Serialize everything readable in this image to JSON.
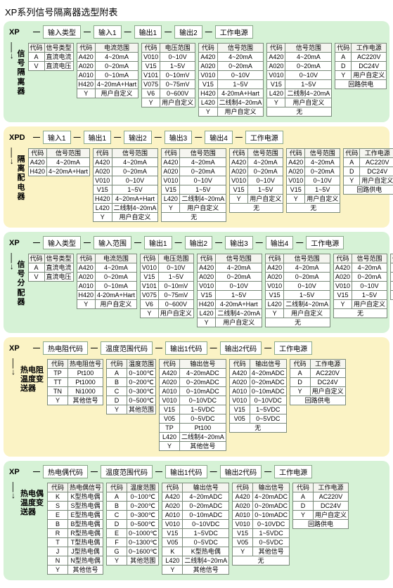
{
  "title": "XP系列信号隔离器选型附表",
  "colors": {
    "green": "#d6f2d6",
    "yellow": "#fbf3c5",
    "border": "#7a8a7a",
    "hbox_border": "#8aa88a"
  },
  "sections": [
    {
      "bg": "green",
      "prefix": "XP",
      "side": "信号隔离器",
      "headers": [
        "输入类型",
        "输入1",
        "输出1",
        "输出2",
        "工作电源"
      ],
      "tables": [
        {
          "th": [
            "代码",
            "信号类型"
          ],
          "rows": [
            [
              "A",
              "直流电流"
            ],
            [
              "V",
              "直流电压"
            ]
          ]
        },
        {
          "th": [
            "代码",
            "电流范围"
          ],
          "rows": [
            [
              "A420",
              "4~20mA"
            ],
            [
              "A020",
              "0~20mA"
            ],
            [
              "A010",
              "0~10mA"
            ],
            [
              "H420",
              "4~20mA+Hart"
            ],
            [
              "Y",
              "用户自定义"
            ]
          ]
        },
        {
          "th": [
            "代码",
            "电压范围"
          ],
          "rows": [
            [
              "V010",
              "0~10V"
            ],
            [
              "V15",
              "1~5V"
            ],
            [
              "V101",
              "0~10mV"
            ],
            [
              "V075",
              "0~75mV"
            ],
            [
              "V6",
              "0~600V"
            ],
            [
              "Y",
              "用户自定义"
            ]
          ]
        },
        {
          "th": [
            "代码",
            "信号范围"
          ],
          "rows": [
            [
              "A420",
              "4~20mA"
            ],
            [
              "A020",
              "0~20mA"
            ],
            [
              "V010",
              "0~10V"
            ],
            [
              "V15",
              "1~5V"
            ],
            [
              "H420",
              "4-20mA+Hart"
            ],
            [
              "L420",
              "二线制4~20mA"
            ],
            [
              "Y",
              "用户自定义"
            ]
          ]
        },
        {
          "th": [
            "代码",
            "信号范围"
          ],
          "rows": [
            [
              "A420",
              "4~20mA"
            ],
            [
              "A020",
              "0~20mA"
            ],
            [
              "V010",
              "0~10V"
            ],
            [
              "V15",
              "1~5V"
            ],
            [
              "L420",
              "二线制4~20mA"
            ],
            [
              "Y",
              "用户自定义"
            ],
            [
              "",
              "无"
            ]
          ]
        },
        {
          "th": [
            "代码",
            "工作电源"
          ],
          "rows": [
            [
              "A",
              "AC220V"
            ],
            [
              "D",
              "DC24V"
            ],
            [
              "Y",
              "用户自定义"
            ],
            [
              "",
              "回路供电"
            ]
          ]
        }
      ]
    },
    {
      "bg": "yellow",
      "prefix": "XPD",
      "side": "隔离配电器",
      "headers": [
        "输入1",
        "输出1",
        "输出2",
        "输出3",
        "输出4",
        "工作电源"
      ],
      "tables": [
        {
          "th": [
            "代码",
            "信号范围"
          ],
          "rows": [
            [
              "A420",
              "4~20mA"
            ],
            [
              "H420",
              "4~20mA+Hart"
            ]
          ]
        },
        {
          "th": [
            "代码",
            "信号范围"
          ],
          "rows": [
            [
              "A420",
              "4~20mA"
            ],
            [
              "A020",
              "0~20mA"
            ],
            [
              "V010",
              "0~10V"
            ],
            [
              "V15",
              "1~5V"
            ],
            [
              "H420",
              "4~20mA+Hart"
            ],
            [
              "L420",
              "二线制4~20mA"
            ],
            [
              "Y",
              "用户自定义"
            ]
          ]
        },
        {
          "th": [
            "代码",
            "信号范围"
          ],
          "rows": [
            [
              "A420",
              "4~20mA"
            ],
            [
              "A020",
              "0~20mA"
            ],
            [
              "V010",
              "0~10V"
            ],
            [
              "V15",
              "1~5V"
            ],
            [
              "L420",
              "二线制4~20mA"
            ],
            [
              "Y",
              "用户自定义"
            ],
            [
              "",
              "无"
            ]
          ]
        },
        {
          "th": [
            "代码",
            "信号范围"
          ],
          "rows": [
            [
              "A420",
              "4~20mA"
            ],
            [
              "A020",
              "0~20mA"
            ],
            [
              "V010",
              "0~10V"
            ],
            [
              "V15",
              "1~5V"
            ],
            [
              "Y",
              "用户自定义"
            ],
            [
              "",
              "无"
            ]
          ]
        },
        {
          "th": [
            "代码",
            "信号范围"
          ],
          "rows": [
            [
              "A420",
              "4~20mA"
            ],
            [
              "A020",
              "0~20mA"
            ],
            [
              "V010",
              "0~10V"
            ],
            [
              "V15",
              "1~5V"
            ],
            [
              "Y",
              "用户自定义"
            ],
            [
              "",
              "无"
            ]
          ]
        },
        {
          "th": [
            "代码",
            "工作电源"
          ],
          "rows": [
            [
              "A",
              "AC220V"
            ],
            [
              "D",
              "DC24V"
            ],
            [
              "Y",
              "用户自定义"
            ],
            [
              "",
              "回路供电"
            ]
          ]
        }
      ]
    },
    {
      "bg": "green",
      "prefix": "XP",
      "side": "信号分配器",
      "headers": [
        "输入类型",
        "输入范围",
        "输出1",
        "输出2",
        "输出3",
        "输出4",
        "工作电源"
      ],
      "tables": [
        {
          "th": [
            "代码",
            "信号类型"
          ],
          "rows": [
            [
              "A",
              "直流电流"
            ],
            [
              "V",
              "直流电压"
            ]
          ]
        },
        {
          "th": [
            "代码",
            "电流范围"
          ],
          "rows": [
            [
              "A420",
              "4~20mA"
            ],
            [
              "A020",
              "0~20mA"
            ],
            [
              "A010",
              "0~10mA"
            ],
            [
              "H420",
              "4-20mA+Hart"
            ],
            [
              "Y",
              "用户自定义"
            ]
          ]
        },
        {
          "th": [
            "代码",
            "电压范围"
          ],
          "rows": [
            [
              "V010",
              "0~10V"
            ],
            [
              "V15",
              "1~5V"
            ],
            [
              "V101",
              "0~10mV"
            ],
            [
              "V075",
              "0~75mV"
            ],
            [
              "V6",
              "0~600V"
            ],
            [
              "Y",
              "用户自定义"
            ]
          ]
        },
        {
          "th": [
            "代码",
            "信号范围"
          ],
          "rows": [
            [
              "A420",
              "4~20mA"
            ],
            [
              "A020",
              "0~20mA"
            ],
            [
              "V010",
              "0~10V"
            ],
            [
              "V15",
              "1~5V"
            ],
            [
              "H420",
              "4-20mA+Hart"
            ],
            [
              "L420",
              "二线制4~20mA"
            ],
            [
              "Y",
              "用户自定义"
            ]
          ]
        },
        {
          "th": [
            "代码",
            "信号范围"
          ],
          "rows": [
            [
              "A420",
              "4~20mA"
            ],
            [
              "A020",
              "0~20mA"
            ],
            [
              "V010",
              "0~10V"
            ],
            [
              "V15",
              "1~5V"
            ],
            [
              "L420",
              "二线制4~20mA"
            ],
            [
              "Y",
              "用户自定义"
            ],
            [
              "",
              "无"
            ]
          ]
        },
        {
          "th": [
            "代码",
            "信号范围"
          ],
          "rows": [
            [
              "A420",
              "4~20mA"
            ],
            [
              "A020",
              "0~20mA"
            ],
            [
              "V010",
              "0~10V"
            ],
            [
              "V15",
              "1~5V"
            ],
            [
              "Y",
              "用户自定义"
            ],
            [
              "",
              "无"
            ]
          ]
        },
        {
          "th": [
            "代码",
            "工作电源"
          ],
          "rows": [
            [
              "A",
              "AC220V"
            ],
            [
              "D",
              "DC24V"
            ],
            [
              "Y",
              "用户自定义"
            ],
            [
              "",
              "回路供电"
            ]
          ]
        }
      ]
    },
    {
      "bg": "yellow",
      "prefix": "XP",
      "side": "热电阻温度变送器",
      "headers": [
        "热电阻代码",
        "温度范围代码",
        "输出1代码",
        "输出2代码",
        "工作电源"
      ],
      "tables": [
        {
          "th": [
            "代码",
            "热电阻信号"
          ],
          "rows": [
            [
              "TP",
              "Pt100"
            ],
            [
              "TT",
              "Pt1000"
            ],
            [
              "TN",
              "Ni1000"
            ],
            [
              "Y",
              "其他信号"
            ]
          ]
        },
        {
          "th": [
            "代码",
            "温度范围"
          ],
          "rows": [
            [
              "A",
              "0~100℃"
            ],
            [
              "B",
              "0~200℃"
            ],
            [
              "C",
              "0~300℃"
            ],
            [
              "D",
              "0~500℃"
            ],
            [
              "Y",
              "其他范围"
            ]
          ]
        },
        {
          "th": [
            "代码",
            "输出信号"
          ],
          "rows": [
            [
              "A420",
              "4~20mADC"
            ],
            [
              "A020",
              "0~20mADC"
            ],
            [
              "A010",
              "0~10mADC"
            ],
            [
              "V010",
              "0~10VDC"
            ],
            [
              "V15",
              "1~5VDC"
            ],
            [
              "V05",
              "0~5VDC"
            ],
            [
              "TP",
              "Pt100"
            ],
            [
              "L420",
              "二线制4~20mA"
            ],
            [
              "Y",
              "其他信号"
            ]
          ]
        },
        {
          "th": [
            "代码",
            "输出信号"
          ],
          "rows": [
            [
              "A420",
              "4~20mADC"
            ],
            [
              "A020",
              "0~20mADC"
            ],
            [
              "A010",
              "0~10mADC"
            ],
            [
              "V010",
              "0~10VDC"
            ],
            [
              "V15",
              "1~5VDC"
            ],
            [
              "V05",
              "0~5VDC"
            ],
            [
              "",
              "无"
            ]
          ]
        },
        {
          "th": [
            "代码",
            "工作电源"
          ],
          "rows": [
            [
              "A",
              "AC220V"
            ],
            [
              "D",
              "DC24V"
            ],
            [
              "Y",
              "用户自定义"
            ],
            [
              "",
              "回路供电"
            ]
          ]
        }
      ]
    },
    {
      "bg": "green",
      "prefix": "XP",
      "side": "热电偶温度变送器",
      "headers": [
        "热电偶代码",
        "温度范围代码",
        "输出1代码",
        "输出2代码",
        "工作电源"
      ],
      "tables": [
        {
          "th": [
            "代码",
            "热电偶信号"
          ],
          "rows": [
            [
              "K",
              "K型热电偶"
            ],
            [
              "S",
              "S型热电偶"
            ],
            [
              "E",
              "E型热电偶"
            ],
            [
              "B",
              "B型热电偶"
            ],
            [
              "R",
              "R型热电偶"
            ],
            [
              "T",
              "T型热电偶"
            ],
            [
              "J",
              "J型热电偶"
            ],
            [
              "N",
              "N型热电偶"
            ],
            [
              "Y",
              "其他信号"
            ]
          ]
        },
        {
          "th": [
            "代码",
            "温度范围"
          ],
          "rows": [
            [
              "A",
              "0~100℃"
            ],
            [
              "B",
              "0~200℃"
            ],
            [
              "C",
              "0~300℃"
            ],
            [
              "D",
              "0~500℃"
            ],
            [
              "E",
              "0~1000℃"
            ],
            [
              "F",
              "0~1300℃"
            ],
            [
              "G",
              "0~1600℃"
            ],
            [
              "Y",
              "其他范围"
            ]
          ]
        },
        {
          "th": [
            "代码",
            "输出信号"
          ],
          "rows": [
            [
              "A420",
              "4~20mADC"
            ],
            [
              "A020",
              "0~20mADC"
            ],
            [
              "A010",
              "0~10mADC"
            ],
            [
              "V010",
              "0~10VDC"
            ],
            [
              "V15",
              "1~5VDC"
            ],
            [
              "V05",
              "0~5VDC"
            ],
            [
              "K",
              "K型热电偶"
            ],
            [
              "L420",
              "二线制4~20mA"
            ],
            [
              "Y",
              "其他信号"
            ]
          ]
        },
        {
          "th": [
            "代码",
            "输出信号"
          ],
          "rows": [
            [
              "A420",
              "4~20mADC"
            ],
            [
              "A020",
              "0~20mADC"
            ],
            [
              "A010",
              "0~10mADC"
            ],
            [
              "V010",
              "0~10VDC"
            ],
            [
              "V15",
              "1~5VDC"
            ],
            [
              "V05",
              "0~5VDC"
            ],
            [
              "Y",
              "其他信号"
            ],
            [
              "",
              "无"
            ]
          ]
        },
        {
          "th": [
            "代码",
            "工作电源"
          ],
          "rows": [
            [
              "A",
              "AC220V"
            ],
            [
              "D",
              "DC24V"
            ],
            [
              "Y",
              "用户自定义"
            ],
            [
              "",
              "回路供电"
            ]
          ]
        }
      ]
    }
  ]
}
